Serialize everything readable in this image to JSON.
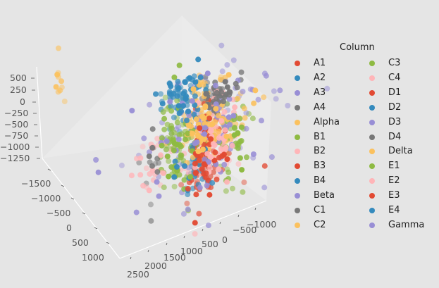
{
  "chart_data": {
    "type": "scatter",
    "projection": "3d",
    "title": "",
    "xlabel": "",
    "ylabel": "",
    "zlabel": "",
    "axes": {
      "x": {
        "ticks": [
          "2500",
          "2000",
          "1500",
          "1000",
          "500",
          "0",
          "−500",
          "−1000"
        ]
      },
      "y": {
        "ticks": [
          "−1500",
          "−1000",
          "−500",
          "0",
          "500",
          "1000"
        ]
      },
      "z": {
        "ticks": [
          "500",
          "250",
          "0",
          "−250",
          "−500",
          "−750",
          "−1000",
          "−1250"
        ]
      }
    },
    "grid": true,
    "legend": {
      "title": "Column",
      "placement": "right",
      "columns": 2
    },
    "series": [
      {
        "name": "A1",
        "color": "#E24A33",
        "n": 40,
        "center": [
          -84,
          0,
          -493
        ],
        "spread": [
          170,
          300,
          450
        ]
      },
      {
        "name": "A2",
        "color": "#348ABD",
        "n": 40,
        "center": [
          420,
          0,
          1152
        ],
        "spread": [
          250,
          200,
          180
        ]
      },
      {
        "name": "A3",
        "color": "#988ED5",
        "n": 40,
        "center": [
          0,
          0,
          0
        ],
        "spread": [
          840,
          400,
          600
        ]
      },
      {
        "name": "A4",
        "color": "#777777",
        "n": 35,
        "center": [
          -336,
          0,
          802
        ],
        "spread": [
          200,
          150,
          150
        ]
      },
      {
        "name": "Alpha",
        "color": "#FBC15E",
        "n": 60,
        "center": [
          0,
          0,
          385
        ],
        "spread": [
          250,
          200,
          450
        ],
        "outlier": {
          "n": 10,
          "center": [
            3360,
            0,
            2288
          ],
          "spread": [
            60,
            60,
            300
          ]
        }
      },
      {
        "name": "B1",
        "color": "#8EBA42",
        "n": 50,
        "center": [
          588,
          0,
          212
        ],
        "spread": [
          200,
          200,
          520
        ]
      },
      {
        "name": "B2",
        "color": "#FFB5B8",
        "n": 55,
        "center": [
          -336,
          0,
          -275
        ],
        "spread": [
          300,
          200,
          450
        ]
      },
      {
        "name": "B3",
        "color": "#E24A33",
        "n": 30,
        "center": [
          -84,
          0,
          -300
        ],
        "spread": [
          170,
          300,
          500
        ]
      },
      {
        "name": "B4",
        "color": "#348ABD",
        "n": 25,
        "center": [
          300,
          0,
          300
        ],
        "spread": [
          250,
          200,
          500
        ]
      },
      {
        "name": "Beta",
        "color": "#988ED5",
        "n": 35,
        "center": [
          -200,
          0,
          100
        ],
        "spread": [
          900,
          400,
          650
        ]
      },
      {
        "name": "C1",
        "color": "#777777",
        "n": 15,
        "center": [
          1176,
          0,
          -38
        ],
        "spread": [
          150,
          150,
          500
        ]
      },
      {
        "name": "C2",
        "color": "#FBC15E",
        "n": 45,
        "center": [
          -100,
          0,
          200
        ],
        "spread": [
          250,
          200,
          500
        ]
      },
      {
        "name": "C3",
        "color": "#8EBA42",
        "n": 45,
        "center": [
          -756,
          0,
          -350
        ],
        "spread": [
          200,
          200,
          520
        ]
      },
      {
        "name": "C4",
        "color": "#FFB5B8",
        "n": 30,
        "center": [
          1008,
          0,
          -99
        ],
        "spread": [
          280,
          200,
          350
        ]
      },
      {
        "name": "D1",
        "color": "#E24A33",
        "n": 25,
        "center": [
          0,
          0,
          -600
        ],
        "spread": [
          170,
          300,
          400
        ]
      },
      {
        "name": "D2",
        "color": "#348ABD",
        "n": 25,
        "center": [
          500,
          0,
          1000
        ],
        "spread": [
          250,
          200,
          250
        ]
      },
      {
        "name": "D3",
        "color": "#988ED5",
        "n": 30,
        "center": [
          100,
          0,
          -200
        ],
        "spread": [
          900,
          400,
          600
        ]
      },
      {
        "name": "D4",
        "color": "#777777",
        "n": 25,
        "center": [
          -400,
          0,
          750
        ],
        "spread": [
          200,
          150,
          150
        ]
      },
      {
        "name": "Delta",
        "color": "#FBC15E",
        "n": 35,
        "center": [
          -600,
          0,
          0
        ],
        "spread": [
          400,
          200,
          400
        ]
      },
      {
        "name": "E1",
        "color": "#8EBA42",
        "n": 40,
        "center": [
          500,
          0,
          -300
        ],
        "spread": [
          250,
          200,
          450
        ]
      },
      {
        "name": "E2",
        "color": "#FFB5B8",
        "n": 40,
        "center": [
          -450,
          0,
          -100
        ],
        "spread": [
          250,
          200,
          500
        ]
      },
      {
        "name": "E3",
        "color": "#E24A33",
        "n": 20,
        "center": [
          -200,
          0,
          -700
        ],
        "spread": [
          400,
          300,
          350
        ]
      },
      {
        "name": "E4",
        "color": "#348ABD",
        "n": 25,
        "center": [
          84,
          0,
          -816
        ],
        "spread": [
          300,
          200,
          250
        ]
      },
      {
        "name": "Gamma",
        "color": "#988ED5",
        "n": 30,
        "center": [
          -300,
          0,
          300
        ],
        "spread": [
          800,
          400,
          600
        ]
      }
    ]
  }
}
